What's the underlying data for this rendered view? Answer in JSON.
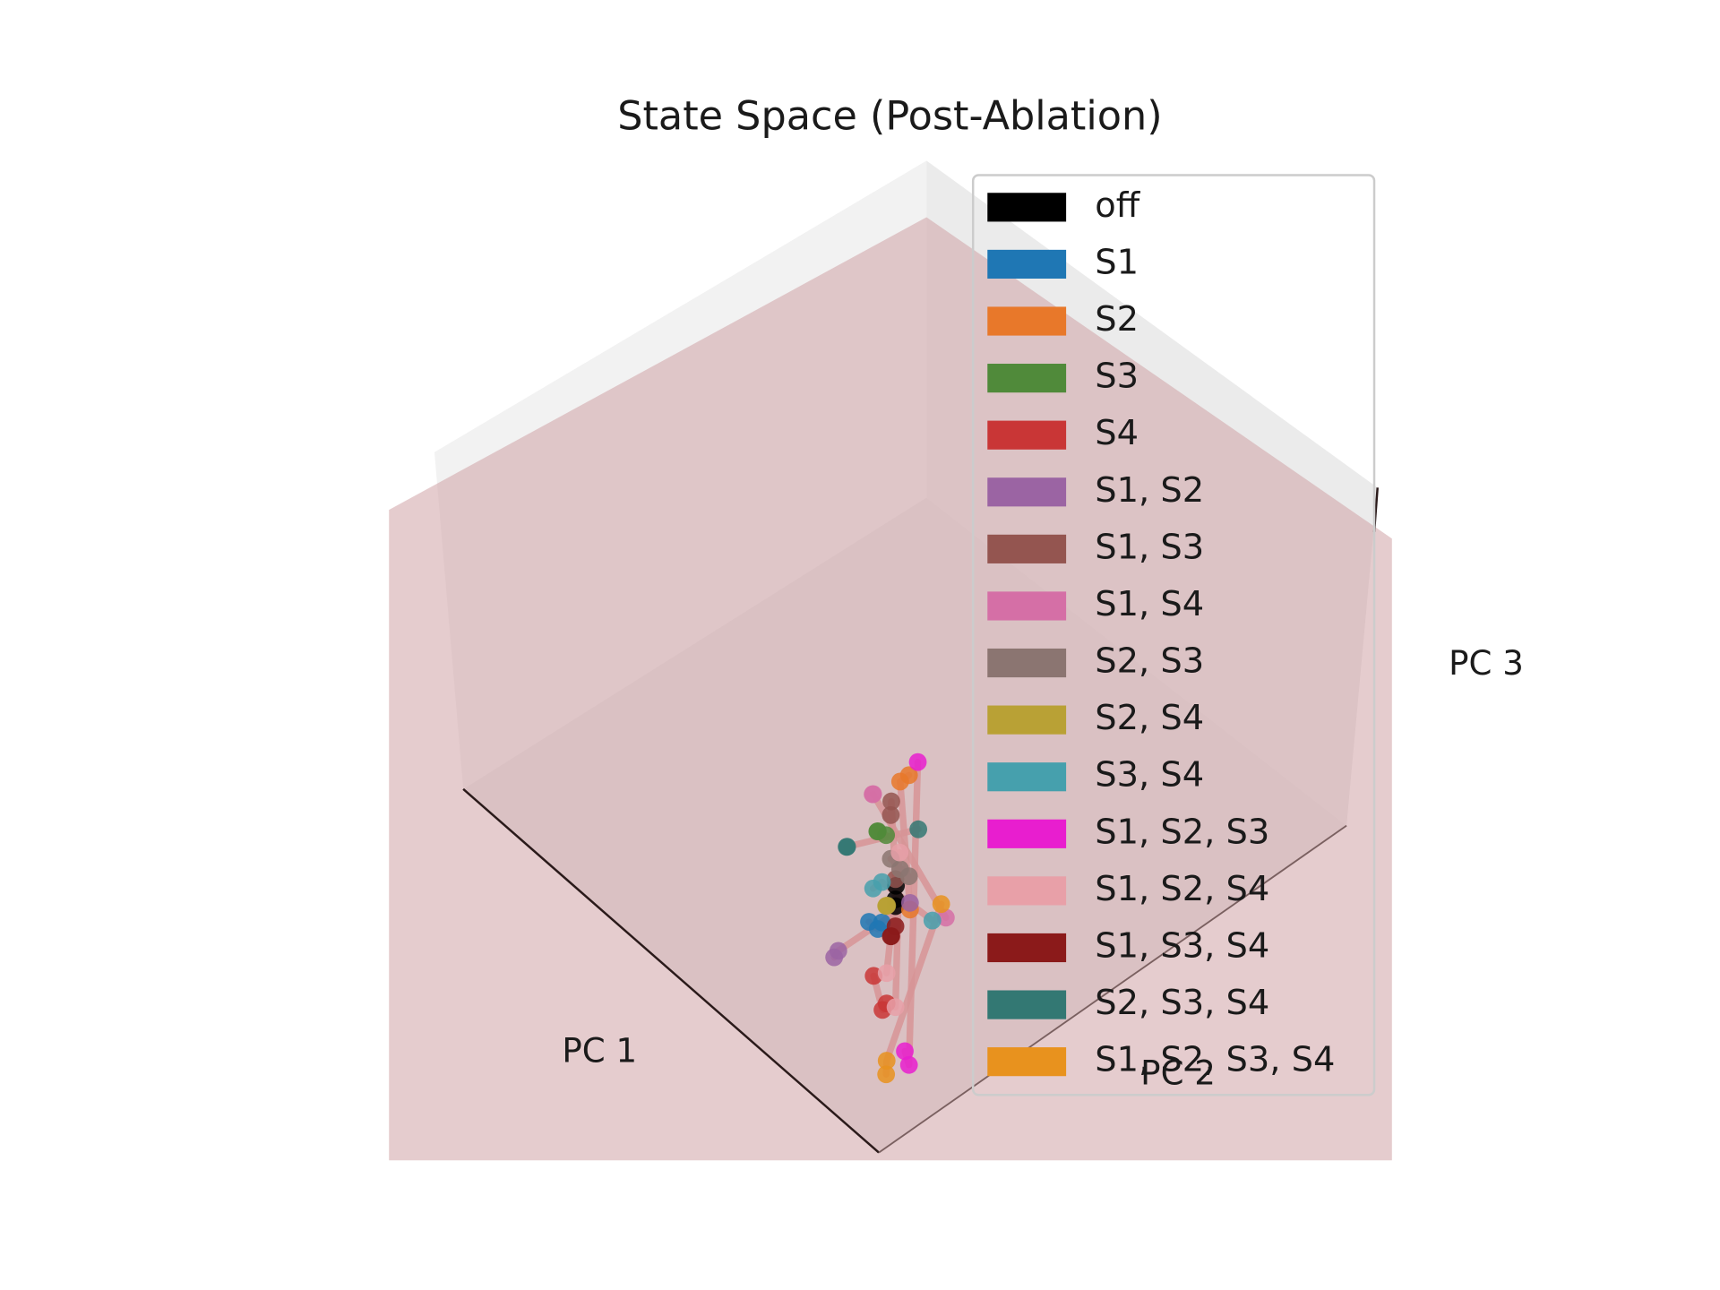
{
  "chart_data": {
    "type": "scatter3d",
    "title": "State Space (Post-Ablation)",
    "xlabel": "PC 1",
    "ylabel": "PC 2",
    "zlabel": "PC 3",
    "xlim": [
      0,
      1
    ],
    "ylim": [
      0,
      1
    ],
    "zlim": [
      0,
      1
    ],
    "line_color": "#e08282",
    "series": [
      {
        "name": "off",
        "color": "#000000",
        "x": [
          0.05,
          0.06,
          0.05
        ],
        "y": [
          0.08,
          0.09,
          0.08
        ],
        "z": [
          0.62,
          0.64,
          0.6
        ]
      },
      {
        "name": "S1",
        "color": "#1f77b4",
        "x": [
          0.08,
          0.07,
          0.06
        ],
        "y": [
          0.05,
          0.06,
          0.06
        ],
        "z": [
          0.55,
          0.53,
          0.56
        ]
      },
      {
        "name": "S2",
        "color": "#e8782a",
        "x": [
          0.04,
          0.05,
          0.06
        ],
        "y": [
          0.1,
          0.09,
          0.12
        ],
        "z": [
          0.98,
          0.96,
          0.54
        ]
      },
      {
        "name": "S3",
        "color": "#508a3a",
        "x": [
          0.06,
          0.07,
          0.05
        ],
        "y": [
          0.05,
          0.06,
          0.06
        ],
        "z": [
          0.84,
          0.82,
          0.83
        ]
      },
      {
        "name": "S4",
        "color": "#c93636",
        "x": [
          0.08,
          0.07,
          0.06
        ],
        "y": [
          0.06,
          0.07,
          0.07
        ],
        "z": [
          0.38,
          0.28,
          0.31
        ]
      },
      {
        "name": "S1, S2",
        "color": "#9b64a3",
        "x": [
          0.13,
          0.12,
          0.06
        ],
        "y": [
          0.02,
          0.02,
          0.12
        ],
        "z": [
          0.42,
          0.45,
          0.56
        ]
      },
      {
        "name": "S1, S3",
        "color": "#945550",
        "x": [
          0.05,
          0.06,
          0.05
        ],
        "y": [
          0.07,
          0.08,
          0.08
        ],
        "z": [
          0.88,
          0.9,
          0.68
        ]
      },
      {
        "name": "S1, S4",
        "color": "#d56fa6",
        "x": [
          0.06,
          0.07,
          0.03
        ],
        "y": [
          0.04,
          0.05,
          0.17
        ],
        "z": [
          0.96,
          0.94,
          0.5
        ]
      },
      {
        "name": "S2, S3",
        "color": "#8b7571",
        "x": [
          0.05,
          0.04,
          0.05
        ],
        "y": [
          0.09,
          0.1,
          0.07
        ],
        "z": [
          0.7,
          0.68,
          0.75
        ]
      },
      {
        "name": "S2, S4",
        "color": "#b9a135",
        "x": [
          0.06,
          0.05,
          0.07
        ],
        "y": [
          0.07,
          0.06,
          0.08
        ],
        "z": [
          0.6,
          0.62,
          0.58
        ]
      },
      {
        "name": "S3, S4",
        "color": "#46a0ad",
        "x": [
          0.07,
          0.06,
          0.04
        ],
        "y": [
          0.05,
          0.06,
          0.15
        ],
        "z": [
          0.66,
          0.68,
          0.5
        ]
      },
      {
        "name": "S1, S2, S3",
        "color": "#e81ecf",
        "x": [
          0.03,
          0.04,
          0.05
        ],
        "y": [
          0.11,
          0.1,
          0.1
        ],
        "z": [
          1.02,
          0.12,
          0.15
        ]
      },
      {
        "name": "S1, S2, S4",
        "color": "#e8a0a8",
        "x": [
          0.05,
          0.04,
          0.06
        ],
        "y": [
          0.08,
          0.08,
          0.07
        ],
        "z": [
          0.3,
          0.77,
          0.4
        ]
      },
      {
        "name": "S1, S3, S4",
        "color": "#8b1a1a",
        "x": [
          0.05,
          0.06,
          0.05
        ],
        "y": [
          0.07,
          0.08,
          0.08
        ],
        "z": [
          0.52,
          0.5,
          0.54
        ]
      },
      {
        "name": "S2, S3, S4",
        "color": "#337873",
        "x": [
          0.1,
          0.11,
          0.04
        ],
        "y": [
          0.02,
          0.03,
          0.12
        ],
        "z": [
          0.78,
          0.76,
          0.8
        ]
      },
      {
        "name": "S1, S2, S3, S4",
        "color": "#e8921e",
        "x": [
          0.05,
          0.06,
          0.03
        ],
        "y": [
          0.06,
          0.07,
          0.16
        ],
        "z": [
          0.12,
          0.14,
          0.55
        ]
      }
    ]
  }
}
